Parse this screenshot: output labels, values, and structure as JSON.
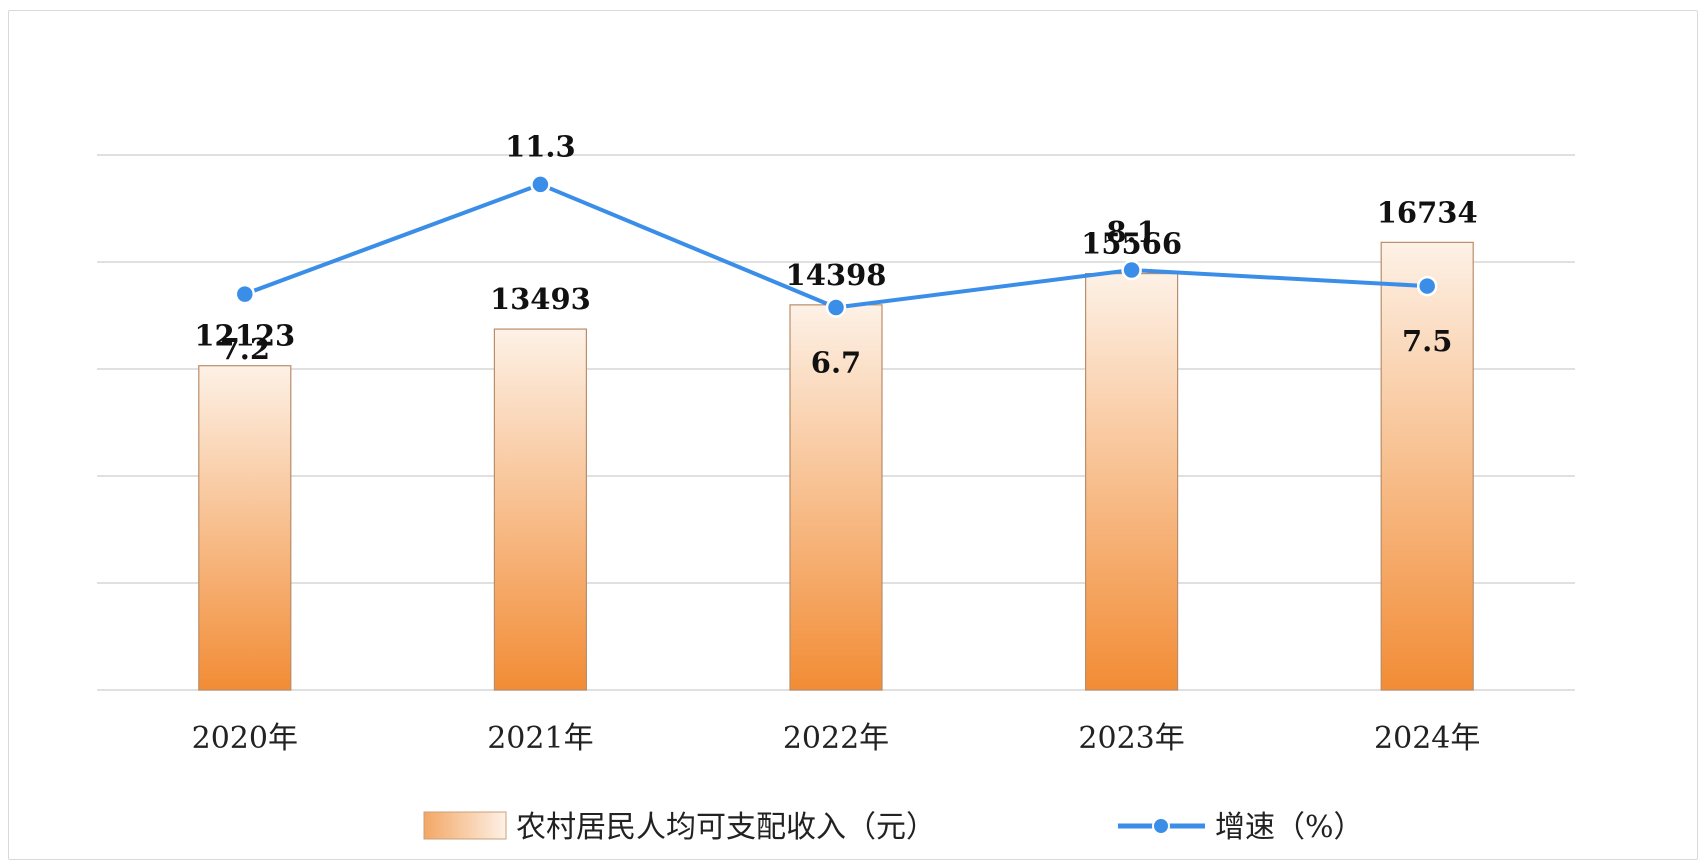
{
  "chart_data": {
    "type": "bar",
    "categories": [
      "2020年",
      "2021年",
      "2022年",
      "2023年",
      "2024年"
    ],
    "series": [
      {
        "name": "农村居民人均可支配收入（元）",
        "type": "bar",
        "values": [
          12123,
          13493,
          14398,
          15566,
          16734
        ],
        "color": "#f0883a"
      },
      {
        "name": "增速（%）",
        "type": "line",
        "values": [
          7.2,
          11.3,
          6.7,
          8.1,
          7.5
        ],
        "color": "#3b8ee8"
      }
    ],
    "bar_ylim": [
      0,
      20000
    ],
    "line_ylim": [
      -7.6,
      12.4
    ],
    "grid": true,
    "legend_position": "bottom"
  },
  "legend": {
    "bar_label": "农村居民人均可支配收入（元）",
    "line_label": "增速（%）"
  }
}
